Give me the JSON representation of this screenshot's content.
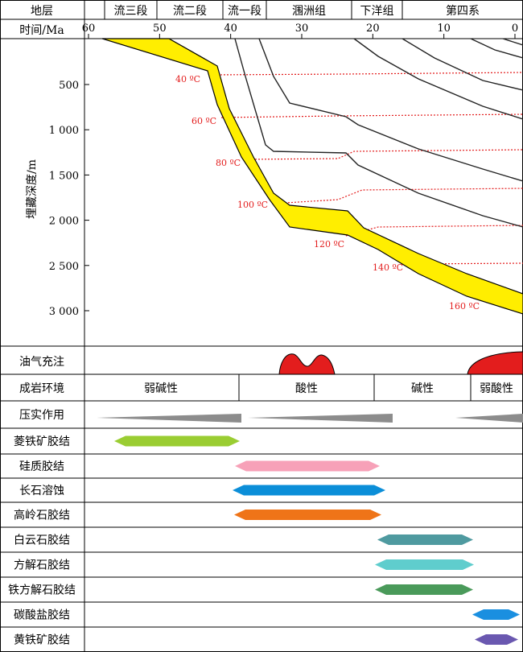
{
  "header": {
    "strata_label": "地层",
    "time_label": "时间/Ma",
    "formations": [
      "流三段",
      "流二段",
      "流一段",
      "涠洲组",
      "下洋组",
      "第四系"
    ],
    "time_ticks": [
      "60",
      "50",
      "40",
      "30",
      "20",
      "10",
      "0"
    ]
  },
  "burial": {
    "ylabel": "埋藏深度/m",
    "depth_ticks": [
      "500",
      "1 000",
      "1 500",
      "2 000",
      "2 500",
      "3 000"
    ],
    "isotherms": [
      "40 ºC",
      "60 ºC",
      "80 ºC",
      "100 ºC",
      "120 ºC",
      "140 ºC",
      "160 ºC"
    ]
  },
  "oil_charge_label": "油气充注",
  "environment": {
    "label": "成岩环境",
    "phases": [
      "弱碱性",
      "酸性",
      "碱性",
      "弱酸性"
    ]
  },
  "compaction_label": "压实作用",
  "events": [
    {
      "label": "菱铁矿胶结",
      "color": "#9acd32"
    },
    {
      "label": "硅质胶结",
      "color": "#f7a1b8"
    },
    {
      "label": "长石溶蚀",
      "color": "#0b8ed8"
    },
    {
      "label": "高岭石胶结",
      "color": "#ef7418"
    },
    {
      "label": "白云石胶结",
      "color": "#4f9aa0"
    },
    {
      "label": "方解石胶结",
      "color": "#5fcdcd"
    },
    {
      "label": "铁方解石胶结",
      "color": "#4a9a5a"
    },
    {
      "label": "碳酸盐胶结",
      "color": "#1a8fe0"
    },
    {
      "label": "黄铁矿胶结",
      "color": "#6a58b0"
    }
  ],
  "colors": {
    "target_layer": "#ffee00",
    "isotherm": "#e31d1d",
    "oil": "#e31d1d",
    "compaction": "#8c8c8c"
  }
}
